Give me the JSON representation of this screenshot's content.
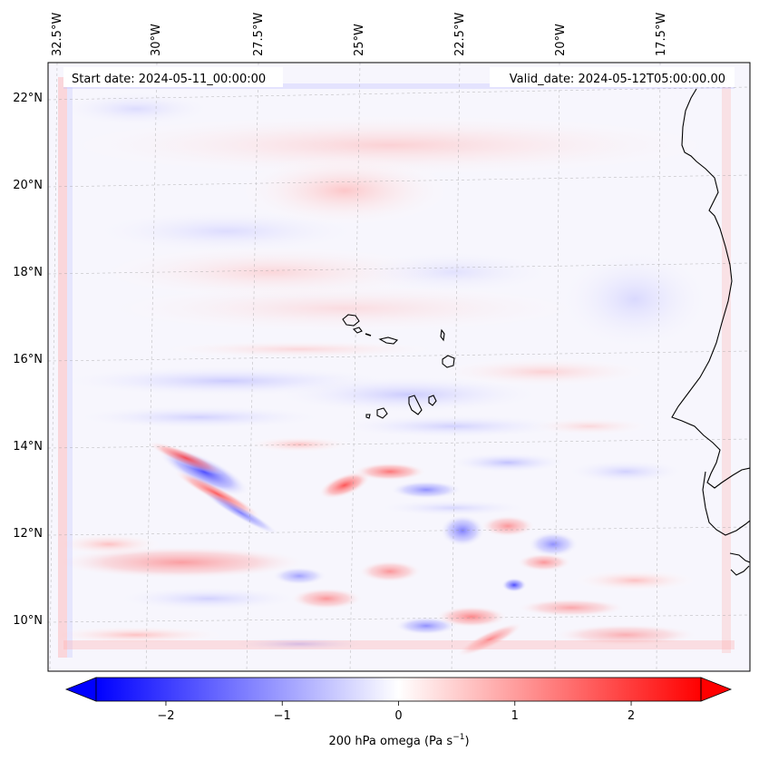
{
  "map": {
    "start_date": "Start date: 2024-05-11_00:00:00",
    "valid_date": "Valid_date: 2024-05-12T05:00:00.00",
    "lon_ticks": [
      "32.5°W",
      "30°W",
      "27.5°W",
      "25°W",
      "22.5°W",
      "20°W",
      "17.5°W"
    ],
    "lat_ticks": [
      "22°N",
      "20°N",
      "18°N",
      "16°N",
      "14°N",
      "12°N",
      "10°N"
    ],
    "field": "200 hPa omega",
    "units": "Pa s",
    "units_exponent": "−1",
    "coastline_color": "#000000",
    "gridline_color": "#9a9a9a"
  },
  "colorbar": {
    "min": -2.6,
    "max": 2.6,
    "extend": "both",
    "ticks": [
      -2,
      -1,
      0,
      1,
      2
    ],
    "tick_labels": [
      "−2",
      "−1",
      "0",
      "1",
      "2"
    ],
    "colors": {
      "low": "#0000ff",
      "mid": "#ffffff",
      "high": "#ff0000"
    }
  }
}
